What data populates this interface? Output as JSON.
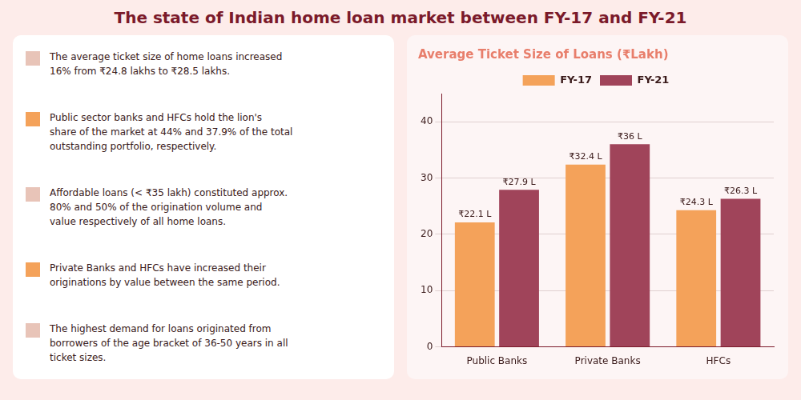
{
  "chart_data": {
    "type": "bar",
    "title": "The state of Indian home loan market between FY-17 and FY-21",
    "subtitle": "Average Ticket Size of Loans (₹Lakh)",
    "categories": [
      "Public Banks",
      "Private Banks",
      "HFCs"
    ],
    "series": [
      {
        "name": "FY-17",
        "color": "#F4A25A",
        "values": [
          22.1,
          32.4,
          24.3
        ],
        "value_labels": [
          "₹22.1 L",
          "₹32.4 L",
          "₹24.3 L"
        ]
      },
      {
        "name": "FY-21",
        "color": "#A0445A",
        "values": [
          27.9,
          36.0,
          26.3
        ],
        "value_labels": [
          "₹27.9 L",
          "₹36 L",
          "₹26.3 L"
        ]
      }
    ],
    "ylim": [
      0,
      45
    ],
    "yticks": [
      0,
      10,
      20,
      30,
      40
    ],
    "grid": true,
    "legend": "top",
    "data_labels": true,
    "annotations": [
      {
        "text": "The average ticket size of home loans increased\n16% from ₹24.8 lakhs to ₹28.5 lakhs.",
        "color": "#E8C4B8"
      },
      {
        "text": "Public sector banks and HFCs hold the lion's\nshare of the market at 44% and 37.9% of the total\noutstanding portfolio, respectively.",
        "color": "#F4A25A"
      },
      {
        "text": "Affordable loans (< ₹35 lakh) constituted approx.\n80% and 50% of the origination volume and\nvalue respectively of all home loans.",
        "color": "#E8C4B8"
      },
      {
        "text": "Private Banks and HFCs have increased their\noriginations by value between the same period.",
        "color": "#F4A25A"
      },
      {
        "text": "The highest demand for loans originated from\nborrowers of the age bracket of 36-50 years in all\nticket sizes.",
        "color": "#E8C4B8"
      }
    ]
  }
}
